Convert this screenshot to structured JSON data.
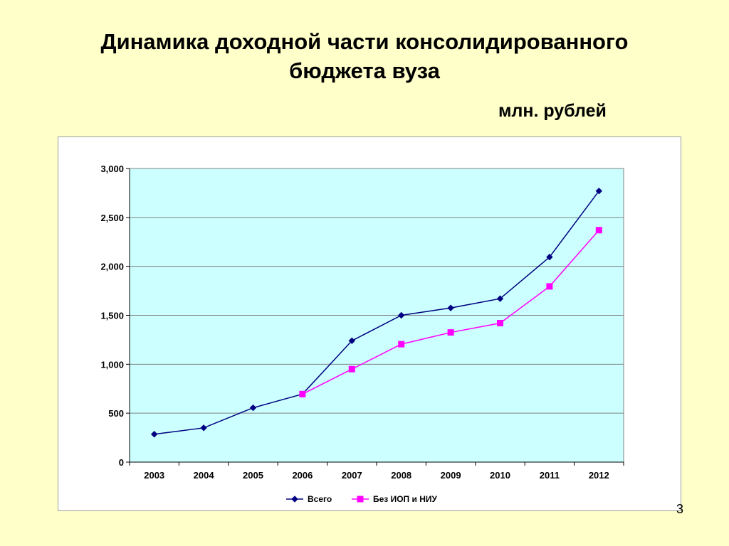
{
  "slide": {
    "title_line1": "Динамика доходной части консолидированного",
    "title_line2": "бюджета вуза",
    "units": "млн. рублей",
    "slide_number": "3"
  },
  "colors": {
    "background": "#FFFFC9",
    "plot_area": "#CCFFFF",
    "series_total": "#000080",
    "series_excl": "#FF00FF",
    "gridline": "#808080"
  },
  "chart_data": {
    "type": "line",
    "title": "",
    "xlabel": "",
    "ylabel": "",
    "categories": [
      "2003",
      "2004",
      "2005",
      "2006",
      "2007",
      "2008",
      "2009",
      "2010",
      "2011",
      "2012"
    ],
    "y_ticks": [
      "0",
      "500",
      "1,000",
      "1,500",
      "2,000",
      "2,500",
      "3,000"
    ],
    "ylim": [
      0,
      3000
    ],
    "grid": true,
    "legend_position": "bottom",
    "series": [
      {
        "name": "Всего",
        "marker": "diamond",
        "color": "#000080",
        "values": [
          285,
          350,
          555,
          695,
          1240,
          1500,
          1575,
          1670,
          2095,
          2770
        ]
      },
      {
        "name": "Без ИОП и НИУ",
        "marker": "square",
        "color": "#FF00FF",
        "values": [
          null,
          null,
          null,
          695,
          950,
          1205,
          1325,
          1420,
          1795,
          2370
        ]
      }
    ]
  }
}
